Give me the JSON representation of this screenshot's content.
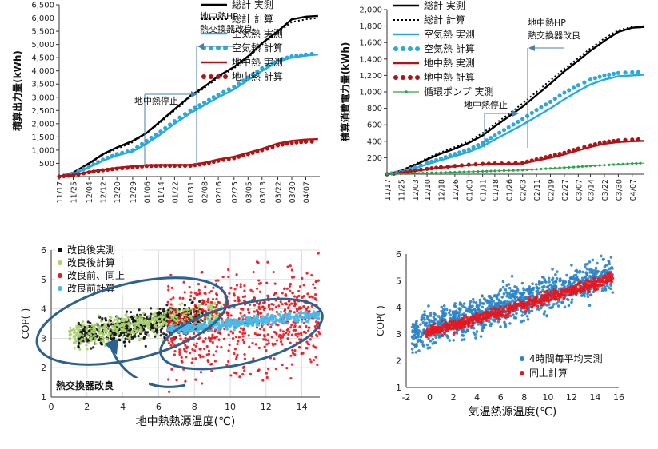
{
  "colors": {
    "total": "#000000",
    "air": "#29a9dc",
    "ground": "#b11216",
    "pump": "#2aa34a",
    "scatter_after": "#111111",
    "scatter_after_calc": "#a8d36a",
    "scatter_before": "#e8161d",
    "scatter_before_calc": "#4ab8e8",
    "ellipse": "#2d6290",
    "scatter_hourly": "#2b84c6",
    "scatter_hourly_calc": "#e8161d"
  },
  "chart_data": [
    {
      "type": "line",
      "id": "output",
      "ylabel": "積算出力量(kWh)",
      "ylim": [
        0,
        6500
      ],
      "yticks": [
        500,
        1000,
        1500,
        2000,
        2500,
        3000,
        3500,
        4000,
        4500,
        5000,
        5500,
        6000,
        6500
      ],
      "ytick_labels": [
        "500",
        "1,000",
        "1,500",
        "2,000",
        "2,500",
        "3,000",
        "3,500",
        "4,000",
        "4,500",
        "5,000",
        "5,500",
        "6,000",
        "6,500"
      ],
      "x_dates": [
        "11/17",
        "11/25",
        "12/04",
        "12/12",
        "12/20",
        "12/29",
        "01/06",
        "01/14",
        "01/22",
        "01/31",
        "02/08",
        "02/16",
        "02/25",
        "03/05",
        "03/13",
        "03/22",
        "03/30",
        "04/07"
      ],
      "x_start": "11/17",
      "x_end": "04/15",
      "series": [
        {
          "name": "総計 実測",
          "style": "solid",
          "color_key": "total",
          "x": [
            "11/17",
            "11/25",
            "12/04",
            "12/12",
            "12/20",
            "12/29",
            "01/06",
            "01/14",
            "01/22",
            "01/31",
            "02/08",
            "02/16",
            "02/25",
            "03/05",
            "03/13",
            "03/22",
            "03/30",
            "04/07",
            "04/14"
          ],
          "y": [
            0,
            150,
            500,
            850,
            1100,
            1350,
            1650,
            2100,
            2550,
            3050,
            3400,
            3800,
            4150,
            4550,
            5050,
            5500,
            5950,
            6050,
            6080
          ]
        },
        {
          "name": "総計 計算",
          "style": "dotted",
          "color_key": "total",
          "x": [
            "11/17",
            "11/25",
            "12/04",
            "12/12",
            "12/20",
            "12/29",
            "01/06",
            "01/14",
            "01/22",
            "01/31",
            "02/08",
            "02/16",
            "02/25",
            "03/05",
            "03/13",
            "03/22",
            "03/30",
            "04/07",
            "04/14"
          ],
          "y": [
            0,
            150,
            480,
            820,
            1050,
            1300,
            1650,
            2050,
            2500,
            3000,
            3350,
            3750,
            4100,
            4500,
            5000,
            5450,
            5850,
            5950,
            6000
          ]
        },
        {
          "name": "空気熱 実測",
          "style": "solid",
          "color_key": "air",
          "x": [
            "11/17",
            "11/25",
            "12/04",
            "12/12",
            "12/20",
            "12/29",
            "01/06",
            "01/14",
            "01/22",
            "01/31",
            "02/08",
            "02/16",
            "02/25",
            "03/05",
            "03/13",
            "03/22",
            "03/30",
            "04/07",
            "04/14"
          ],
          "y": [
            0,
            100,
            350,
            600,
            800,
            950,
            1250,
            1600,
            2000,
            2400,
            2700,
            3000,
            3300,
            3650,
            4000,
            4350,
            4500,
            4580,
            4620
          ]
        },
        {
          "name": "空気熱 計算",
          "style": "dots",
          "color_key": "air",
          "x": [
            "11/17",
            "11/25",
            "12/04",
            "12/12",
            "12/20",
            "12/29",
            "01/06",
            "01/14",
            "01/22",
            "01/31",
            "02/08",
            "02/16",
            "02/25",
            "03/05",
            "03/13",
            "03/22",
            "03/30",
            "04/07",
            "04/14"
          ],
          "y": [
            0,
            110,
            380,
            640,
            850,
            1000,
            1350,
            1700,
            2100,
            2500,
            2800,
            3100,
            3400,
            3750,
            4100,
            4400,
            4550,
            4620,
            4660
          ]
        },
        {
          "name": "地中熱 実測",
          "style": "solid",
          "color_key": "ground",
          "x": [
            "11/17",
            "11/25",
            "12/04",
            "12/12",
            "12/20",
            "12/29",
            "01/06",
            "01/14",
            "01/22",
            "01/31",
            "02/08",
            "02/16",
            "02/25",
            "03/05",
            "03/13",
            "03/22",
            "03/30",
            "04/07",
            "04/14"
          ],
          "y": [
            0,
            60,
            180,
            260,
            330,
            390,
            430,
            440,
            440,
            440,
            520,
            650,
            750,
            900,
            1050,
            1250,
            1350,
            1400,
            1420
          ]
        },
        {
          "name": "地中熱 計算",
          "style": "dots",
          "color_key": "ground",
          "x": [
            "11/17",
            "11/25",
            "12/04",
            "12/12",
            "12/20",
            "12/29",
            "01/06",
            "01/14",
            "01/22",
            "01/31",
            "02/08",
            "02/16",
            "02/25",
            "03/05",
            "03/13",
            "03/22",
            "03/30",
            "04/07",
            "04/14"
          ],
          "y": [
            0,
            50,
            160,
            240,
            300,
            350,
            400,
            410,
            410,
            410,
            480,
            600,
            700,
            850,
            1000,
            1180,
            1280,
            1320,
            1330
          ]
        }
      ],
      "annotations": [
        {
          "text": "地中熱停止",
          "kind": "stop"
        },
        {
          "text": "地中熱HP",
          "kind": "upgrade1"
        },
        {
          "text": "熱交換器改良",
          "kind": "upgrade2"
        }
      ]
    },
    {
      "type": "line",
      "id": "power",
      "ylabel": "積算消費電力量(kWh)",
      "ylim": [
        0,
        2000
      ],
      "yticks": [
        200,
        400,
        600,
        800,
        1000,
        1200,
        1400,
        1600,
        1800,
        2000
      ],
      "ytick_labels": [
        "200",
        "400",
        "600",
        "800",
        "1,000",
        "1,200",
        "1,400",
        "1,600",
        "1,800",
        "2,000"
      ],
      "x_dates": [
        "11/17",
        "11/25",
        "12/03",
        "12/10",
        "12/18",
        "12/26",
        "01/03",
        "01/11",
        "01/18",
        "01/26",
        "02/03",
        "02/11",
        "02/19",
        "02/27",
        "03/07",
        "03/14",
        "03/22",
        "03/30",
        "04/07"
      ],
      "x_start": "11/17",
      "x_end": "04/14",
      "series": [
        {
          "name": "総計 実測",
          "style": "solid",
          "color_key": "total",
          "x": [
            "11/17",
            "11/25",
            "12/03",
            "12/10",
            "12/18",
            "12/26",
            "01/03",
            "01/11",
            "01/18",
            "01/26",
            "02/03",
            "02/11",
            "02/19",
            "02/27",
            "03/07",
            "03/14",
            "03/22",
            "03/30",
            "04/07",
            "04/14"
          ],
          "y": [
            0,
            40,
            110,
            180,
            250,
            310,
            380,
            470,
            580,
            700,
            820,
            960,
            1100,
            1250,
            1380,
            1500,
            1620,
            1730,
            1780,
            1790
          ]
        },
        {
          "name": "総計 計算",
          "style": "dotted",
          "color_key": "total",
          "x": [
            "11/17",
            "11/25",
            "12/03",
            "12/10",
            "12/18",
            "12/26",
            "01/03",
            "01/11",
            "01/18",
            "01/26",
            "02/03",
            "02/11",
            "02/19",
            "02/27",
            "03/07",
            "03/14",
            "03/22",
            "03/30",
            "04/07",
            "04/14"
          ],
          "y": [
            0,
            45,
            120,
            195,
            265,
            330,
            400,
            500,
            610,
            730,
            860,
            1000,
            1140,
            1280,
            1410,
            1530,
            1650,
            1750,
            1790,
            1800
          ]
        },
        {
          "name": "空気熱 実測",
          "style": "solid",
          "color_key": "air",
          "x": [
            "11/17",
            "11/25",
            "12/03",
            "12/10",
            "12/18",
            "12/26",
            "01/03",
            "01/11",
            "01/18",
            "01/26",
            "02/03",
            "02/11",
            "02/19",
            "02/27",
            "03/07",
            "03/14",
            "03/22",
            "03/30",
            "04/07",
            "04/14"
          ],
          "y": [
            0,
            25,
            70,
            120,
            170,
            220,
            270,
            340,
            420,
            510,
            600,
            700,
            800,
            910,
            1010,
            1090,
            1150,
            1190,
            1200,
            1210
          ]
        },
        {
          "name": "空気熱 計算",
          "style": "dots",
          "color_key": "air",
          "x": [
            "11/17",
            "11/25",
            "12/03",
            "12/10",
            "12/18",
            "12/26",
            "01/03",
            "01/11",
            "01/18",
            "01/26",
            "02/03",
            "02/11",
            "02/19",
            "02/27",
            "03/07",
            "03/14",
            "03/22",
            "03/30",
            "04/07",
            "04/14"
          ],
          "y": [
            0,
            30,
            80,
            135,
            190,
            245,
            300,
            380,
            470,
            570,
            670,
            780,
            880,
            990,
            1080,
            1150,
            1200,
            1230,
            1240,
            1240
          ]
        },
        {
          "name": "地中熱 実測",
          "style": "solid",
          "color_key": "ground",
          "x": [
            "11/17",
            "11/25",
            "12/03",
            "12/10",
            "12/18",
            "12/26",
            "01/03",
            "01/11",
            "01/18",
            "01/26",
            "02/03",
            "02/11",
            "02/19",
            "02/27",
            "03/07",
            "03/14",
            "03/22",
            "03/30",
            "04/07",
            "04/14"
          ],
          "y": [
            0,
            15,
            40,
            60,
            80,
            95,
            110,
            120,
            125,
            125,
            130,
            165,
            200,
            240,
            290,
            330,
            370,
            390,
            400,
            405
          ]
        },
        {
          "name": "地中熱 計算",
          "style": "dots",
          "color_key": "ground",
          "x": [
            "11/17",
            "11/25",
            "12/03",
            "12/10",
            "12/18",
            "12/26",
            "01/03",
            "01/11",
            "01/18",
            "01/26",
            "02/03",
            "02/11",
            "02/19",
            "02/27",
            "03/07",
            "03/14",
            "03/22",
            "03/30",
            "04/07",
            "04/14"
          ],
          "y": [
            0,
            15,
            45,
            65,
            85,
            100,
            115,
            125,
            130,
            130,
            140,
            180,
            220,
            260,
            310,
            350,
            390,
            410,
            420,
            425
          ]
        },
        {
          "name": "循環ポンプ 実測",
          "style": "markers",
          "color_key": "pump",
          "x": [
            "11/17",
            "11/25",
            "12/03",
            "12/10",
            "12/18",
            "12/26",
            "01/03",
            "01/11",
            "01/18",
            "01/26",
            "02/03",
            "02/11",
            "02/19",
            "02/27",
            "03/07",
            "03/14",
            "03/22",
            "03/30",
            "04/07",
            "04/14"
          ],
          "y": [
            0,
            5,
            10,
            15,
            20,
            25,
            30,
            35,
            40,
            45,
            50,
            60,
            70,
            80,
            90,
            100,
            110,
            120,
            130,
            135
          ]
        }
      ],
      "annotations": [
        {
          "text": "地中熱停止",
          "kind": "stop"
        },
        {
          "text": "地中熱HP",
          "kind": "upgrade1"
        },
        {
          "text": "熱交換器改良",
          "kind": "upgrade2"
        }
      ]
    },
    {
      "type": "scatter",
      "id": "cop_ground",
      "xlabel": "地中熱熱源温度(℃)",
      "ylabel": "COP(-)",
      "xlim": [
        0,
        15
      ],
      "ylim": [
        1,
        6
      ],
      "xticks": [
        0,
        2,
        4,
        6,
        8,
        10,
        12,
        14
      ],
      "yticks": [
        1,
        2,
        3,
        4,
        5,
        6
      ],
      "grid": true,
      "series": [
        {
          "name": "改良後実測",
          "color_key": "scatter_after",
          "trend": {
            "x0": 1.5,
            "x1": 8.5,
            "y0": 3.1,
            "y1": 3.75,
            "spread": 0.4,
            "n": 650
          }
        },
        {
          "name": "改良後計算",
          "color_key": "scatter_after_calc",
          "trend": {
            "x0": 1.0,
            "x1": 9.5,
            "y0": 3.1,
            "y1": 3.9,
            "spread": 0.35,
            "n": 500
          }
        },
        {
          "name": "改良前、同上",
          "color_key": "scatter_before",
          "trend": {
            "x0": 6.5,
            "x1": 15.0,
            "y0": 3.3,
            "y1": 3.9,
            "spread": 1.4,
            "n": 700
          }
        },
        {
          "name": "改良前計算",
          "color_key": "scatter_before_calc",
          "trend": {
            "x0": 6.5,
            "x1": 15.0,
            "y0": 3.3,
            "y1": 3.8,
            "spread": 0.15,
            "n": 500
          }
        }
      ],
      "annotations": [
        {
          "text": "熱交換器改良"
        }
      ]
    },
    {
      "type": "scatter",
      "id": "cop_air",
      "xlabel": "気温熱源温度(℃)",
      "ylabel": "COP(-)",
      "xlim": [
        -2,
        16
      ],
      "ylim": [
        1,
        6
      ],
      "xticks": [
        -2,
        0,
        2,
        4,
        6,
        8,
        10,
        12,
        14,
        16
      ],
      "yticks": [
        1,
        2,
        3,
        4,
        5,
        6
      ],
      "grid": false,
      "series": [
        {
          "name": "4時間毎平均実測",
          "color_key": "scatter_hourly",
          "trend": {
            "x0": -1.5,
            "x1": 15.5,
            "y0": 3.0,
            "y1": 5.3,
            "spread": 0.55,
            "n": 1100
          }
        },
        {
          "name": "同上計算",
          "color_key": "scatter_hourly_calc",
          "trend": {
            "x0": -0.5,
            "x1": 15.5,
            "y0": 3.0,
            "y1": 5.1,
            "spread": 0.18,
            "n": 600
          }
        }
      ]
    }
  ]
}
